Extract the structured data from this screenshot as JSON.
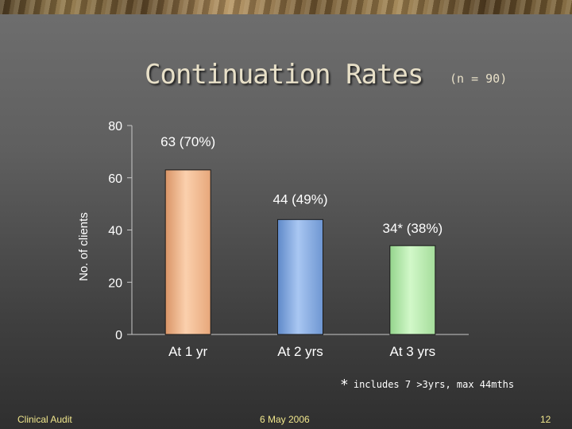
{
  "slide": {
    "title": "Continuation Rates",
    "subtitle": "(n = 90)",
    "footnote_star": "*",
    "footnote_text": "includes 7 >3yrs, max 44mths",
    "footer_left": "Clinical Audit",
    "footer_date": "6 May 2006",
    "slide_number": "12"
  },
  "chart_data": {
    "type": "bar",
    "title": "",
    "ylabel": "No. of clients",
    "xlabel": "",
    "categories": [
      "At 1 yr",
      "At 2 yrs",
      "At 3 yrs"
    ],
    "values": [
      63,
      44,
      34
    ],
    "data_labels": [
      "63 (70%)",
      "44 (49%)",
      "34* (38%)"
    ],
    "bar_colors": [
      "#f8c29a",
      "#8fb3e6",
      "#bff0b4"
    ],
    "ylim": [
      0,
      80
    ],
    "yticks": [
      0,
      20,
      40,
      60,
      80
    ],
    "grid": false,
    "legend": "none"
  }
}
